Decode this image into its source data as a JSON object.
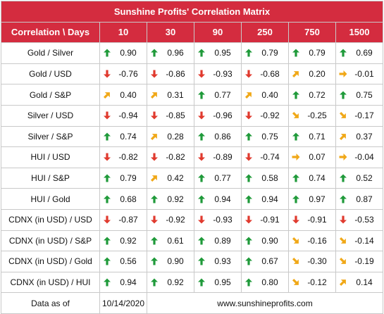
{
  "title": "Sunshine Profits' Correlation Matrix",
  "header": {
    "label": "Correlation \\ Days",
    "days": [
      "10",
      "30",
      "90",
      "250",
      "750",
      "1500"
    ]
  },
  "colors": {
    "header_bg": "#d42c3f",
    "up_green": "#1f9a3a",
    "down_red": "#e03a2e",
    "diag_orange": "#f0a818"
  },
  "rows": [
    {
      "label": "Gold / Silver",
      "cells": [
        {
          "value": "0.90",
          "dir": "up"
        },
        {
          "value": "0.96",
          "dir": "up"
        },
        {
          "value": "0.95",
          "dir": "up"
        },
        {
          "value": "0.79",
          "dir": "up"
        },
        {
          "value": "0.79",
          "dir": "up"
        },
        {
          "value": "0.69",
          "dir": "up"
        }
      ]
    },
    {
      "label": "Gold / USD",
      "cells": [
        {
          "value": "-0.76",
          "dir": "down"
        },
        {
          "value": "-0.86",
          "dir": "down"
        },
        {
          "value": "-0.93",
          "dir": "down"
        },
        {
          "value": "-0.68",
          "dir": "down"
        },
        {
          "value": "0.20",
          "dir": "up-right"
        },
        {
          "value": "-0.01",
          "dir": "right"
        }
      ]
    },
    {
      "label": "Gold / S&P",
      "cells": [
        {
          "value": "0.40",
          "dir": "up-right"
        },
        {
          "value": "0.31",
          "dir": "up-right"
        },
        {
          "value": "0.77",
          "dir": "up"
        },
        {
          "value": "0.40",
          "dir": "up-right"
        },
        {
          "value": "0.72",
          "dir": "up"
        },
        {
          "value": "0.75",
          "dir": "up"
        }
      ]
    },
    {
      "label": "Silver / USD",
      "cells": [
        {
          "value": "-0.94",
          "dir": "down"
        },
        {
          "value": "-0.85",
          "dir": "down"
        },
        {
          "value": "-0.96",
          "dir": "down"
        },
        {
          "value": "-0.92",
          "dir": "down"
        },
        {
          "value": "-0.25",
          "dir": "down-right"
        },
        {
          "value": "-0.17",
          "dir": "down-right"
        }
      ]
    },
    {
      "label": "Silver / S&P",
      "cells": [
        {
          "value": "0.74",
          "dir": "up"
        },
        {
          "value": "0.28",
          "dir": "up-right"
        },
        {
          "value": "0.86",
          "dir": "up"
        },
        {
          "value": "0.75",
          "dir": "up"
        },
        {
          "value": "0.71",
          "dir": "up"
        },
        {
          "value": "0.37",
          "dir": "up-right"
        }
      ]
    },
    {
      "label": "HUI / USD",
      "cells": [
        {
          "value": "-0.82",
          "dir": "down"
        },
        {
          "value": "-0.82",
          "dir": "down"
        },
        {
          "value": "-0.89",
          "dir": "down"
        },
        {
          "value": "-0.74",
          "dir": "down"
        },
        {
          "value": "0.07",
          "dir": "right"
        },
        {
          "value": "-0.04",
          "dir": "right"
        }
      ]
    },
    {
      "label": "HUI / S&P",
      "cells": [
        {
          "value": "0.79",
          "dir": "up"
        },
        {
          "value": "0.42",
          "dir": "up-right"
        },
        {
          "value": "0.77",
          "dir": "up"
        },
        {
          "value": "0.58",
          "dir": "up"
        },
        {
          "value": "0.74",
          "dir": "up"
        },
        {
          "value": "0.52",
          "dir": "up"
        }
      ]
    },
    {
      "label": "HUI / Gold",
      "cells": [
        {
          "value": "0.68",
          "dir": "up"
        },
        {
          "value": "0.92",
          "dir": "up"
        },
        {
          "value": "0.94",
          "dir": "up"
        },
        {
          "value": "0.94",
          "dir": "up"
        },
        {
          "value": "0.97",
          "dir": "up"
        },
        {
          "value": "0.87",
          "dir": "up"
        }
      ]
    },
    {
      "label": "CDNX (in USD) / USD",
      "cells": [
        {
          "value": "-0.87",
          "dir": "down"
        },
        {
          "value": "-0.92",
          "dir": "down"
        },
        {
          "value": "-0.93",
          "dir": "down"
        },
        {
          "value": "-0.91",
          "dir": "down"
        },
        {
          "value": "-0.91",
          "dir": "down"
        },
        {
          "value": "-0.53",
          "dir": "down"
        }
      ]
    },
    {
      "label": "CDNX (in USD) / S&P",
      "cells": [
        {
          "value": "0.92",
          "dir": "up"
        },
        {
          "value": "0.61",
          "dir": "up"
        },
        {
          "value": "0.89",
          "dir": "up"
        },
        {
          "value": "0.90",
          "dir": "up"
        },
        {
          "value": "-0.16",
          "dir": "down-right"
        },
        {
          "value": "-0.14",
          "dir": "down-right"
        }
      ]
    },
    {
      "label": "CDNX (in USD) / Gold",
      "cells": [
        {
          "value": "0.56",
          "dir": "up"
        },
        {
          "value": "0.90",
          "dir": "up"
        },
        {
          "value": "0.93",
          "dir": "up"
        },
        {
          "value": "0.67",
          "dir": "up"
        },
        {
          "value": "-0.30",
          "dir": "down-right"
        },
        {
          "value": "-0.19",
          "dir": "down-right"
        }
      ]
    },
    {
      "label": "CDNX (in USD) / HUI",
      "cells": [
        {
          "value": "0.94",
          "dir": "up"
        },
        {
          "value": "0.92",
          "dir": "up"
        },
        {
          "value": "0.95",
          "dir": "up"
        },
        {
          "value": "0.80",
          "dir": "up"
        },
        {
          "value": "-0.12",
          "dir": "down-right"
        },
        {
          "value": "0.14",
          "dir": "up-right"
        }
      ]
    }
  ],
  "footer": {
    "label": "Data as of",
    "date": "10/14/2020",
    "site": "www.sunshineprofits.com"
  }
}
